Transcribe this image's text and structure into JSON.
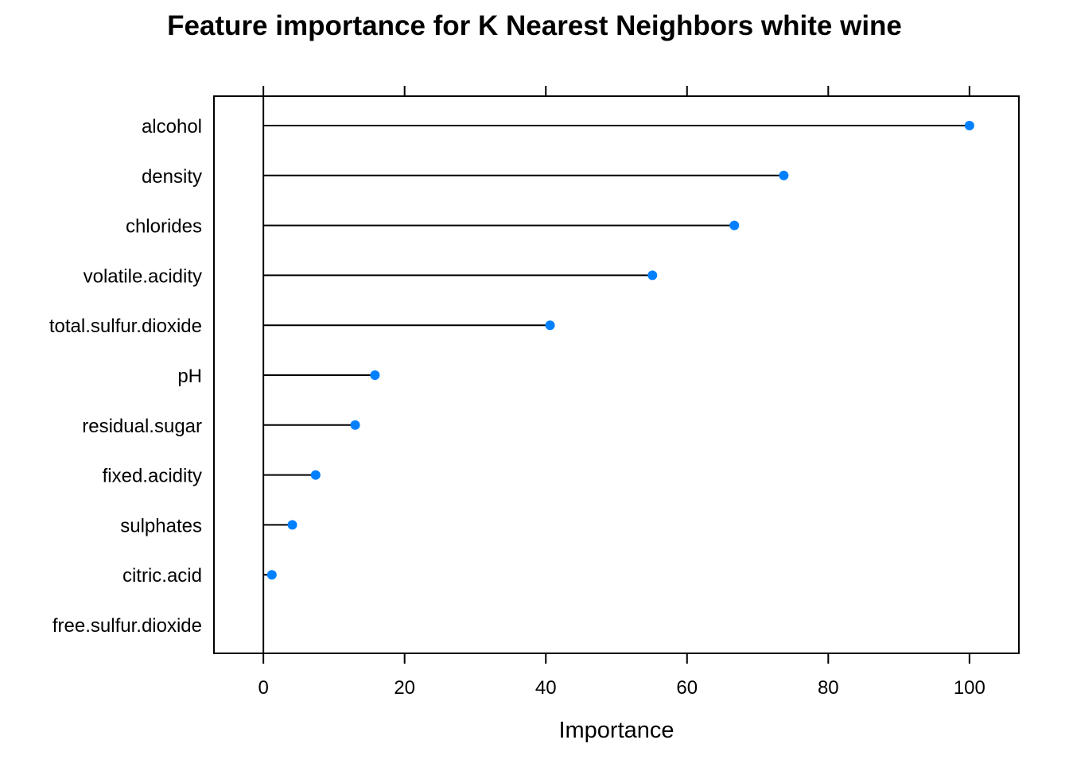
{
  "chart_data": {
    "type": "dot",
    "title": "Feature importance for K Nearest Neighbors white wine",
    "xlabel": "Importance",
    "ylabel": "",
    "xlim": [
      -7,
      107
    ],
    "xticks": [
      0,
      20,
      40,
      60,
      80,
      100
    ],
    "xtick_labels": [
      "0",
      "20",
      "40",
      "60",
      "80",
      "100"
    ],
    "ticks_on_top": true,
    "grid": false,
    "categories": [
      "alcohol",
      "density",
      "chlorides",
      "volatile.acidity",
      "total.sulfur.dioxide",
      "pH",
      "residual.sugar",
      "fixed.acidity",
      "sulphates",
      "citric.acid",
      "free.sulfur.dioxide"
    ],
    "values": [
      100,
      73.7,
      66.7,
      55.1,
      40.6,
      15.8,
      13.0,
      7.4,
      4.1,
      1.2,
      0
    ],
    "point_color": "#0080FF",
    "line_color": "#000000"
  }
}
